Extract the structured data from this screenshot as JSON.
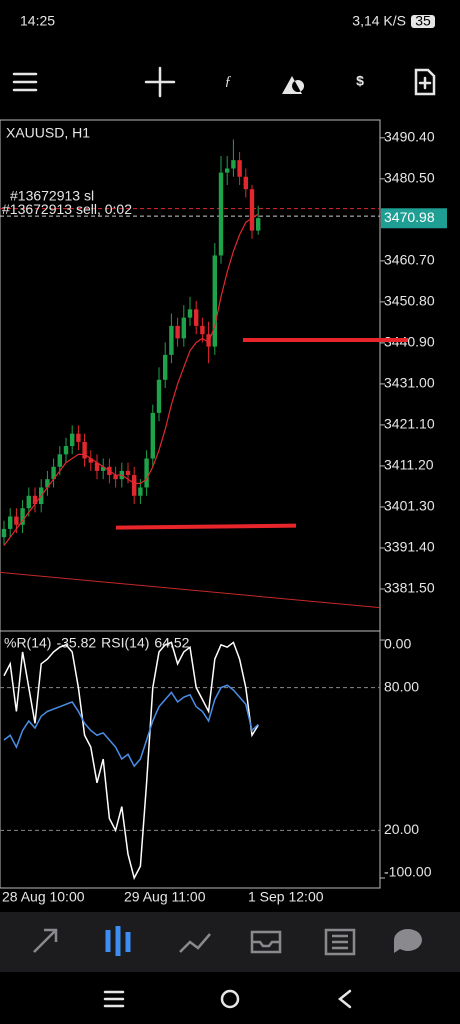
{
  "status_bar": {
    "time": "14:25",
    "speed": "3,14 K/S",
    "battery": "35"
  },
  "chart_data": [
    {
      "type": "candlestick",
      "title": "XAUUSD, H1",
      "categories": [
        "28 Aug 10:00",
        null,
        null,
        null,
        null,
        null,
        null,
        null,
        null,
        null,
        null,
        null,
        null,
        null,
        null,
        null,
        null,
        null,
        null,
        null,
        "29 Aug 11:00",
        null,
        null,
        null,
        null,
        null,
        null,
        null,
        null,
        null,
        null,
        null,
        null,
        null,
        null,
        null,
        null,
        null,
        null,
        null,
        "1 Sep 12:00",
        null
      ],
      "open": [
        3394,
        3396,
        3399,
        3397,
        3401,
        3404,
        3402,
        3406,
        3408,
        3411,
        3414,
        3416,
        3419,
        3417,
        3413,
        3412,
        3410,
        3411,
        3409,
        3408,
        3410,
        3409,
        3404,
        3406,
        3413,
        3424,
        3432,
        3438,
        3445,
        3442,
        3447,
        3449,
        3445,
        3443,
        3440,
        3462,
        3482,
        3483,
        3485,
        3481,
        3478,
        3468
      ],
      "high": [
        3398,
        3401,
        3401,
        3403,
        3406,
        3406,
        3408,
        3410,
        3413,
        3416,
        3418,
        3421,
        3421,
        3419,
        3415,
        3414,
        3413,
        3413,
        3411,
        3412,
        3412,
        3411,
        3408,
        3415,
        3426,
        3435,
        3441,
        3448,
        3447,
        3450,
        3452,
        3451,
        3447,
        3446,
        3465,
        3486,
        3486,
        3490,
        3487,
        3483,
        3479,
        3474
      ],
      "low": [
        3392,
        3394,
        3395,
        3395,
        3399,
        3400,
        3400,
        3404,
        3406,
        3409,
        3412,
        3414,
        3415,
        3411,
        3410,
        3408,
        3408,
        3407,
        3406,
        3406,
        3407,
        3402,
        3402,
        3404,
        3411,
        3422,
        3430,
        3436,
        3440,
        3440,
        3445,
        3443,
        3441,
        3436,
        3438,
        3460,
        3479,
        3481,
        3479,
        3476,
        3466,
        3467
      ],
      "close": [
        3396,
        3399,
        3397,
        3401,
        3404,
        3402,
        3406,
        3408,
        3411,
        3414,
        3416,
        3419,
        3417,
        3413,
        3412,
        3410,
        3411,
        3409,
        3408,
        3410,
        3409,
        3404,
        3406,
        3413,
        3424,
        3432,
        3438,
        3445,
        3442,
        3447,
        3449,
        3445,
        3443,
        3440,
        3462,
        3482,
        3483,
        3485,
        3481,
        3478,
        3468,
        3471
      ],
      "colors": {
        "up": "#1fa34a",
        "down": "#e0282e"
      },
      "ma": {
        "color": "#e0282e",
        "values": [
          3392,
          3394,
          3396,
          3398,
          3400,
          3402,
          3404,
          3406,
          3408,
          3410,
          3412,
          3413,
          3414,
          3414,
          3413,
          3412,
          3411,
          3410,
          3409,
          3409,
          3408,
          3407,
          3407,
          3408,
          3411,
          3415,
          3420,
          3426,
          3431,
          3435,
          3439,
          3441,
          3442,
          3441,
          3445,
          3452,
          3458,
          3463,
          3467,
          3470,
          3471,
          3472
        ]
      },
      "ylim": [
        3371.6,
        3494.7
      ],
      "yticks": [
        {
          "value": 3490.4,
          "label": "3490.40"
        },
        {
          "value": 3480.5,
          "label": "3480.50"
        },
        {
          "value": 3460.7,
          "label": "3460.70"
        },
        {
          "value": 3450.8,
          "label": "3450.80"
        },
        {
          "value": 3440.9,
          "label": "3440.90"
        },
        {
          "value": 3431,
          "label": "3431.00"
        },
        {
          "value": 3421.1,
          "label": "3421.10"
        },
        {
          "value": 3411.2,
          "label": "3411.20"
        },
        {
          "value": 3401.3,
          "label": "3401.30"
        },
        {
          "value": 3391.4,
          "label": "3391.40"
        },
        {
          "value": 3381.5,
          "label": "3381.50"
        }
      ],
      "last_price": 3470.98,
      "orders": [
        {
          "label": "#13672913 sl",
          "value": 3473.3,
          "color": "#e0282e"
        },
        {
          "label": "#13672913 sell, 0:02",
          "value": 3471.5,
          "color": "#cccccc"
        }
      ],
      "trend_lines": [
        {
          "values": [
            3441.6,
            3441.6
          ],
          "color": "#e8252b"
        },
        {
          "values": [
            3396.3,
            3396.8
          ],
          "color": "#e8252b"
        },
        {
          "values": [
            3385.5,
            3377
          ],
          "color": "#c62828"
        }
      ]
    },
    {
      "type": "line",
      "series": [
        {
          "name": "%R(14)",
          "color": "#ffffff",
          "axis": "y2",
          "values": [
            -15,
            -10,
            -30,
            -5,
            -20,
            -35,
            -10,
            -8,
            -5,
            -3,
            -2,
            -5,
            -20,
            -40,
            -45,
            -60,
            -50,
            -75,
            -80,
            -70,
            -90,
            -100,
            -95,
            -60,
            -20,
            -5,
            -2,
            -1,
            -10,
            -5,
            -3,
            -20,
            -25,
            -30,
            -8,
            -2,
            -3,
            -1,
            -8,
            -20,
            -40,
            -35.82
          ]
        },
        {
          "name": "RSI(14)",
          "color": "#4a8fe7",
          "values": [
            58,
            60,
            55,
            62,
            66,
            63,
            68,
            70,
            71,
            72,
            73,
            74,
            70,
            65,
            62,
            60,
            61,
            58,
            55,
            50,
            52,
            47,
            50,
            58,
            66,
            72,
            75,
            78,
            74,
            76,
            77,
            72,
            70,
            66,
            75,
            80,
            81,
            79,
            76,
            73,
            62,
            64.52
          ]
        }
      ],
      "ylim": [
        -4.2,
        103.8
      ],
      "yticks": [
        {
          "value": 80,
          "label": "80.00"
        },
        {
          "value": 20,
          "label": "20.00"
        }
      ],
      "y2lim": [
        -104.2,
        3.8
      ],
      "y2ticks": [
        {
          "value": 0,
          "label": "0.00"
        },
        {
          "value": -100,
          "label": "-100.00"
        }
      ]
    }
  ]
}
